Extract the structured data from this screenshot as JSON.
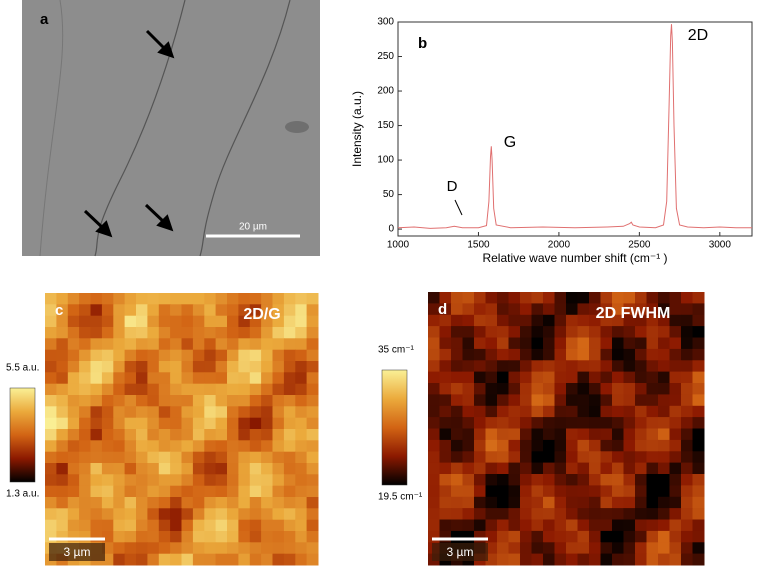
{
  "panels": {
    "a": {
      "label": "a",
      "scale_bar": "20 µm"
    },
    "c": {
      "label": "c",
      "title": "2D/G",
      "colorbar_max": "5.5 a.u.",
      "colorbar_min": "1.3 a.u.",
      "scale_bar": "3 µm"
    },
    "d": {
      "label": "d",
      "title": "2D FWHM",
      "colorbar_max": "35 cm⁻¹",
      "colorbar_min": "19.5 cm⁻¹",
      "scale_bar": "3 µm"
    }
  },
  "chart_data": {
    "type": "line",
    "label": "b",
    "xlabel": "Relative wave number shift (cm⁻¹ )",
    "ylabel": "Intensity (a.u.)",
    "annotations": [
      "2D",
      "G",
      "D"
    ],
    "x": [
      1000,
      1100,
      1200,
      1300,
      1350,
      1400,
      1500,
      1550,
      1565,
      1575,
      1580,
      1585,
      1595,
      1610,
      1700,
      1900,
      2100,
      2300,
      2400,
      2440,
      2450,
      2460,
      2500,
      2600,
      2650,
      2670,
      2685,
      2695,
      2700,
      2705,
      2715,
      2730,
      2750,
      2800,
      2900,
      3000,
      3100,
      3200
    ],
    "series": [
      {
        "color": "#e07070",
        "values": [
          2,
          3,
          1,
          2,
          4,
          2,
          2,
          5,
          40,
          105,
          120,
          100,
          30,
          6,
          2,
          3,
          2,
          3,
          4,
          8,
          10,
          6,
          3,
          2,
          6,
          40,
          180,
          280,
          297,
          270,
          150,
          30,
          6,
          3,
          2,
          3,
          2,
          2
        ]
      }
    ],
    "xlim": [
      1000,
      3200
    ],
    "ylim": [
      -10,
      300
    ],
    "xticks": [
      1000,
      1500,
      2000,
      2500,
      3000
    ],
    "yticks": [
      0,
      50,
      100,
      150,
      200,
      250,
      300
    ]
  }
}
